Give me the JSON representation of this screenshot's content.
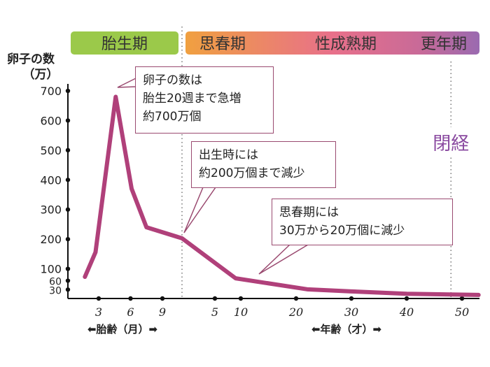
{
  "chart_data": {
    "type": "line",
    "ylabel": "卵子の数\n（万）",
    "ylabel_lines": [
      "卵子の数",
      "（万）"
    ],
    "y_ticks": [
      30,
      60,
      100,
      200,
      300,
      400,
      500,
      600,
      700
    ],
    "ylim": [
      0,
      720
    ],
    "x_axes": [
      {
        "label": "⬅胎齢（月）➡",
        "unit": "month",
        "ticks": [
          3,
          6,
          9
        ]
      },
      {
        "label": "⬅年齢（才）➡",
        "unit": "year",
        "ticks": [
          5,
          10,
          20,
          30,
          40,
          50
        ]
      }
    ],
    "series": [
      {
        "color": "#b0407a",
        "points": [
          {
            "phase": "fetal_month",
            "x": 1.7,
            "y": 73
          },
          {
            "phase": "fetal_month",
            "x": 2.7,
            "y": 156
          },
          {
            "phase": "fetal_month",
            "x": 4.6,
            "y": 680
          },
          {
            "phase": "fetal_month",
            "x": 6.1,
            "y": 370
          },
          {
            "phase": "fetal_month",
            "x": 7.5,
            "y": 240
          },
          {
            "phase": "age_year",
            "x": 0,
            "y": 203
          },
          {
            "phase": "age_year",
            "x": 9,
            "y": 68
          },
          {
            "phase": "age_year",
            "x": 22,
            "y": 31
          },
          {
            "phase": "age_year",
            "x": 30,
            "y": 24
          },
          {
            "phase": "age_year",
            "x": 40,
            "y": 16
          },
          {
            "phase": "age_year",
            "x": 53,
            "y": 12
          }
        ]
      }
    ],
    "phases": [
      {
        "label": "胎生期",
        "color": "#9bc94a"
      },
      {
        "label": "思春期",
        "color": "#f0a040"
      },
      {
        "label": "性成熟期",
        "color": "#e8708a"
      },
      {
        "label": "更年期",
        "color": "#9a6ab0"
      }
    ],
    "markers": [
      {
        "phase": "age_year",
        "x": 0,
        "label": ""
      },
      {
        "phase": "age_year",
        "x": 48,
        "label": "閉経",
        "color": "#8a4aa0"
      }
    ],
    "annotations": [
      {
        "text": "卵子の数は\n胎生20週まで急増\n約700万個"
      },
      {
        "text": "出生時には\n約200万個まで減少"
      },
      {
        "text": "思春期には\n30万から20万個に減少"
      }
    ],
    "grid": false
  }
}
